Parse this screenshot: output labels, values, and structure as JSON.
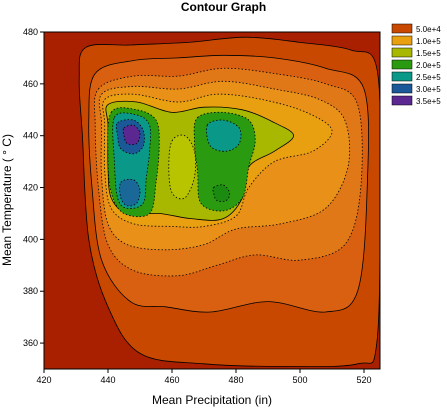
{
  "chart_data": {
    "type": "contour",
    "title": "Contour Graph",
    "xlabel": "Mean Precipitation (in)",
    "ylabel": "Mean Temperature ( ° C)",
    "xlim": [
      420,
      525
    ],
    "ylim": [
      350,
      480
    ],
    "xticks": [
      420,
      440,
      460,
      480,
      500,
      520
    ],
    "yticks": [
      360,
      380,
      400,
      420,
      440,
      460,
      480
    ],
    "x_tick_labels": [
      "420",
      "440",
      "460",
      "480",
      "500",
      "520"
    ],
    "y_tick_labels": [
      "360",
      "380",
      "400",
      "420",
      "440",
      "460",
      "480"
    ],
    "legend_position": "right",
    "levels": [
      {
        "label": "5.0e+4",
        "value": 50000,
        "color": "#c84800"
      },
      {
        "label": "1.0e+5",
        "value": 100000,
        "color": "#e8a010"
      },
      {
        "label": "1.5e+5",
        "value": 150000,
        "color": "#a8b800"
      },
      {
        "label": "2.0e+5",
        "value": 200000,
        "color": "#2a9a10"
      },
      {
        "label": "2.5e+5",
        "value": 250000,
        "color": "#0a9888"
      },
      {
        "label": "3.0e+5",
        "value": 300000,
        "color": "#1a5898"
      },
      {
        "label": "3.5e+5",
        "value": 350000,
        "color": "#5a2890"
      }
    ],
    "peaks": [
      {
        "x": 447,
        "y": 440,
        "value": 370000
      },
      {
        "x": 447,
        "y": 418,
        "value": 280000
      },
      {
        "x": 475,
        "y": 440,
        "value": 260000
      },
      {
        "x": 475,
        "y": 418,
        "value": 220000
      },
      {
        "x": 463,
        "y": 428,
        "value": 160000
      },
      {
        "x": 505,
        "y": 441,
        "value": 120000
      }
    ]
  }
}
